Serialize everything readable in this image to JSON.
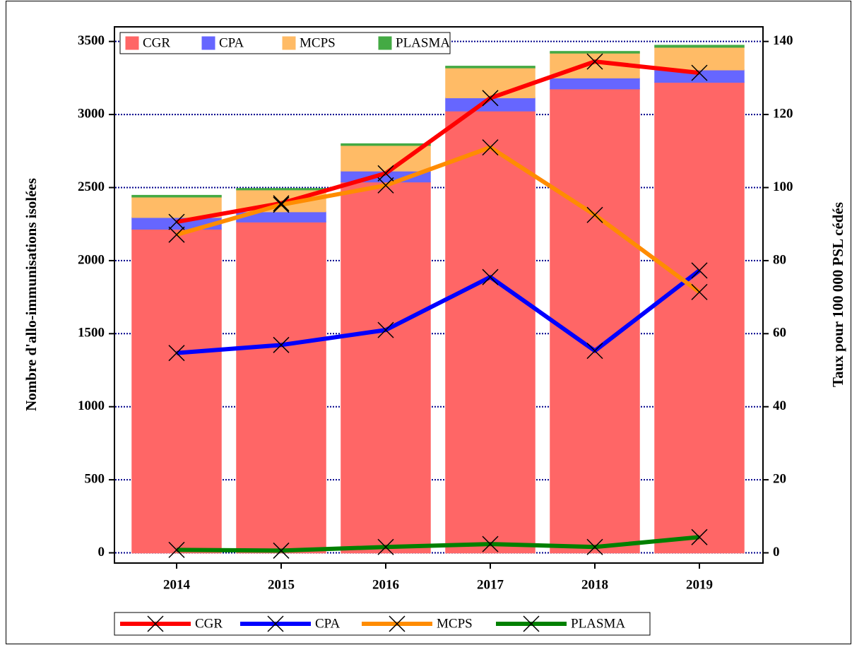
{
  "chart_data": {
    "type": "bar",
    "stacked": true,
    "ylabel": "Nombre d'allo-immunisations isolées",
    "y2label": "Taux pour 100 000 PSL cédés",
    "categories": [
      "2014",
      "2015",
      "2016",
      "2017",
      "2018",
      "2019"
    ],
    "ylim": [
      -70,
      3600
    ],
    "yticks": [
      0,
      500,
      1000,
      1500,
      2000,
      2500,
      3000,
      3500
    ],
    "y2lim": [
      -2.8,
      144
    ],
    "y2ticks": [
      0,
      20,
      40,
      60,
      80,
      100,
      120,
      140
    ],
    "grid": true,
    "series": [
      {
        "name": "CGR",
        "color": "#ff6666",
        "values": [
          2216,
          2265,
          2539,
          3025,
          3176,
          3221
        ]
      },
      {
        "name": "CPA",
        "color": "#6666ff",
        "values": [
          80,
          70,
          75,
          90,
          75,
          85
        ]
      },
      {
        "name": "MCPS",
        "color": "#ffbb66",
        "values": [
          140,
          150,
          175,
          205,
          170,
          155
        ]
      },
      {
        "name": "PLASMA",
        "color": "#44aa44",
        "values": [
          10,
          8,
          10,
          10,
          10,
          12
        ]
      }
    ],
    "line_series": [
      {
        "name": "CGR",
        "color": "#ff0000",
        "axis": "y2",
        "values": [
          90.6,
          95.7,
          103.9,
          124.5,
          134.5,
          131.4
        ]
      },
      {
        "name": "CPA",
        "color": "#0000ff",
        "axis": "y2",
        "values": [
          54.7,
          56.9,
          61.0,
          75.5,
          55.3,
          77.3
        ]
      },
      {
        "name": "MCPS",
        "color": "#ff8c00",
        "axis": "y2",
        "values": [
          87.1,
          95.3,
          100.6,
          111.0,
          92.5,
          71.4
        ]
      },
      {
        "name": "PLASMA",
        "color": "#008000",
        "axis": "y2",
        "values": [
          0.8,
          0.6,
          1.6,
          2.4,
          1.6,
          4.3
        ]
      }
    ]
  }
}
